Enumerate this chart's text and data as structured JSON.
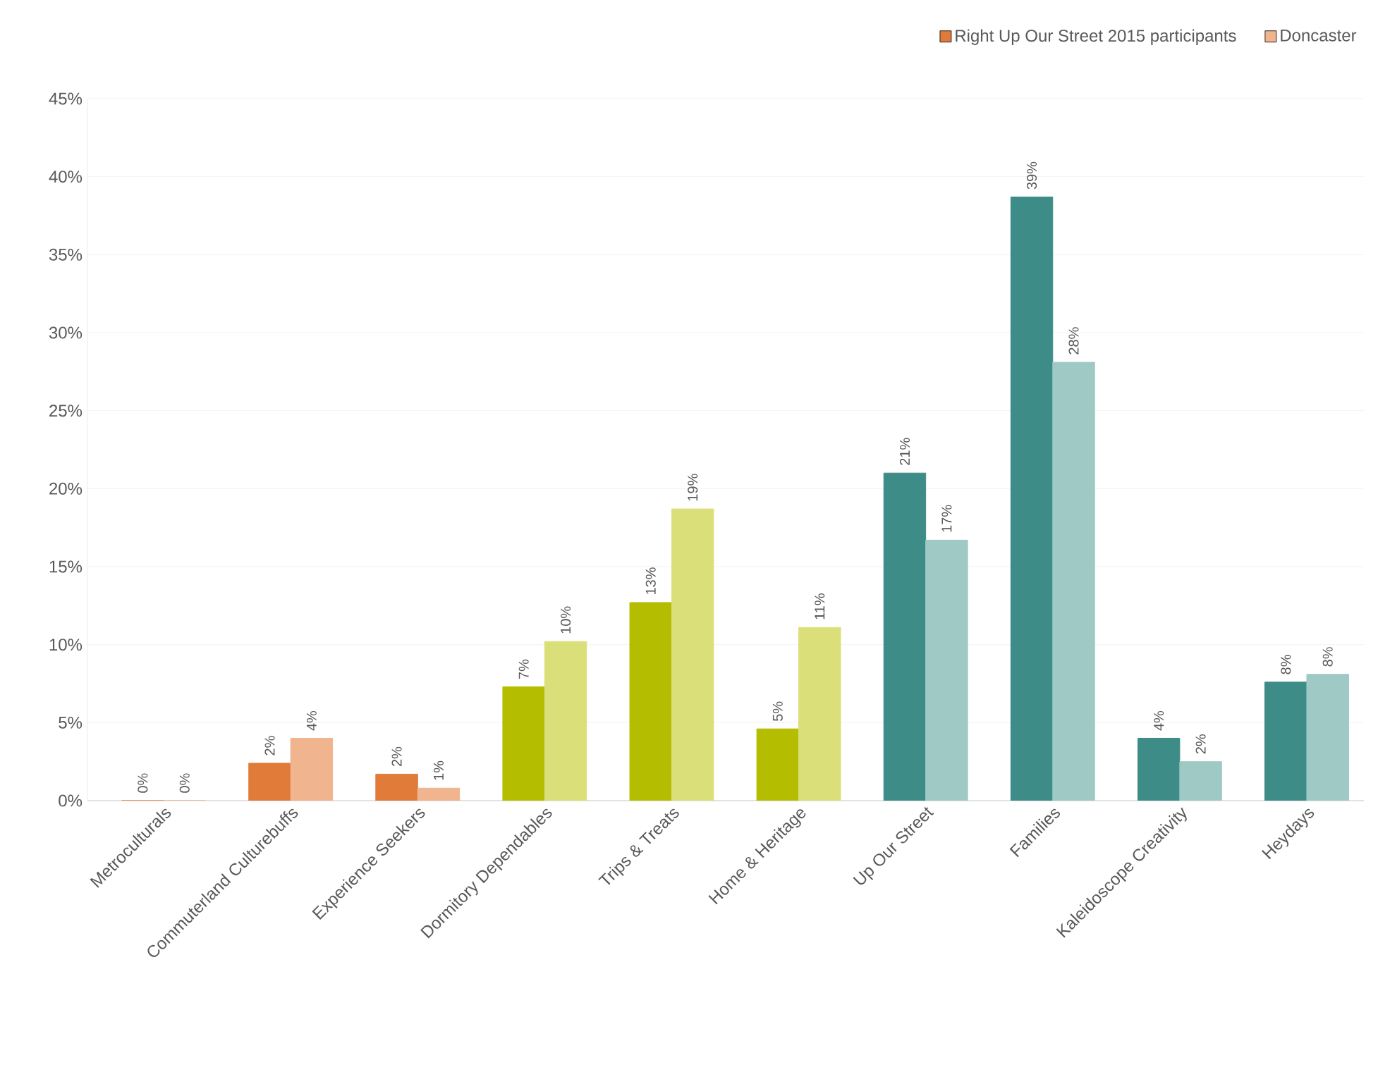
{
  "chart_data": {
    "type": "bar",
    "categories": [
      "Metroculturals",
      "Commuterland Culturebuffs",
      "Experience Seekers",
      "Dormitory Dependables",
      "Trips & Treats",
      "Home & Heritage",
      "Up Our Street",
      "Families",
      "Kaleidoscope Creativity",
      "Heydays"
    ],
    "series": [
      {
        "name": "Right Up Our Street 2015 participants",
        "color": "#e07b39",
        "colors": [
          "#e07b39",
          "#e07b39",
          "#e07b39",
          "#b5bd00",
          "#b5bd00",
          "#b5bd00",
          "#3d8c87",
          "#3d8c87",
          "#3d8c87",
          "#3d8c87"
        ],
        "values": [
          0,
          2.4,
          1.7,
          7.3,
          12.7,
          4.6,
          21,
          38.7,
          4,
          7.6
        ],
        "value_labels": [
          "0%",
          "2%",
          "2%",
          "7%",
          "13%",
          "5%",
          "21%",
          "39%",
          "4%",
          "8%"
        ]
      },
      {
        "name": "Doncaster",
        "color": "#f0b48e",
        "colors": [
          "#f0b48e",
          "#f0b48e",
          "#f0b48e",
          "#dbdf7a",
          "#dbdf7a",
          "#dbdf7a",
          "#9fc9c4",
          "#9fc9c4",
          "#9fc9c4",
          "#9fc9c4"
        ],
        "values": [
          0,
          4,
          0.8,
          10.2,
          18.7,
          11.1,
          16.7,
          28.1,
          2.5,
          8.1
        ],
        "value_labels": [
          "0%",
          "4%",
          "1%",
          "10%",
          "19%",
          "11%",
          "17%",
          "28%",
          "2%",
          "8%"
        ]
      }
    ],
    "ylim": [
      0,
      45
    ],
    "yticks": [
      {
        "value": 0,
        "label": "0%"
      },
      {
        "value": 5,
        "label": "5%"
      },
      {
        "value": 10,
        "label": "10%"
      },
      {
        "value": 15,
        "label": "15%"
      },
      {
        "value": 20,
        "label": "20%"
      },
      {
        "value": 25,
        "label": "25%"
      },
      {
        "value": 30,
        "label": "30%"
      },
      {
        "value": 35,
        "label": "35%"
      },
      {
        "value": 40,
        "label": "40%"
      },
      {
        "value": 45,
        "label": "45%"
      }
    ],
    "grid": "y",
    "legend": "top right"
  }
}
